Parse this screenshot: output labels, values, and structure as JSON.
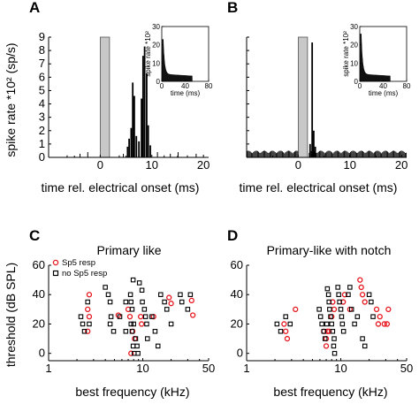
{
  "chart_data": [
    {
      "panel": "A",
      "type": "bar",
      "ylabel": "spike rate *10² (sp/s)",
      "xlabel": "time rel. electrical onset (ms)",
      "xlim": [
        -10,
        21
      ],
      "ylim": [
        0,
        9
      ],
      "yticks": [
        "0",
        "1",
        "2",
        "3",
        "4",
        "5",
        "6",
        "7",
        "8",
        "9"
      ],
      "xticks": [
        "0",
        "10",
        "20"
      ],
      "stim_window": [
        0,
        1.8
      ],
      "peaks": [
        {
          "x": 5.3,
          "y": 0.8
        },
        {
          "x": 5.6,
          "y": 1.4
        },
        {
          "x": 6.0,
          "y": 2.2
        },
        {
          "x": 6.3,
          "y": 5.6
        },
        {
          "x": 6.6,
          "y": 4.6
        },
        {
          "x": 7.0,
          "y": 1.6
        },
        {
          "x": 7.5,
          "y": 1.2
        },
        {
          "x": 8.0,
          "y": 4.4
        },
        {
          "x": 8.3,
          "y": 7.6
        },
        {
          "x": 8.6,
          "y": 8.3
        },
        {
          "x": 9.0,
          "y": 6.3
        },
        {
          "x": 9.3,
          "y": 2.4
        },
        {
          "x": 9.7,
          "y": 0.9
        }
      ],
      "inset": {
        "ylabel": "spike rate *10²",
        "xlabel": "time (ms)",
        "xlim": [
          0,
          80
        ],
        "ylim": [
          0,
          30
        ],
        "xticks": [
          "0",
          "40",
          "80"
        ],
        "yticks": [
          "0",
          "10",
          "20",
          "30"
        ],
        "onset_peak": 23,
        "sustained": 4,
        "offset_ms": 52
      }
    },
    {
      "panel": "B",
      "type": "bar",
      "xlabel": "time rel. electrical onset (ms)",
      "xlim": [
        -10,
        21
      ],
      "ylim": [
        0,
        9
      ],
      "yticks": [
        "0",
        "1",
        "2",
        "3",
        "4",
        "5",
        "6",
        "7",
        "8",
        "9"
      ],
      "xticks": [
        "0",
        "10",
        "20"
      ],
      "stim_window": [
        0,
        1.8
      ],
      "baseline": 0.4,
      "peaks": [
        {
          "x": 2.3,
          "y": 1.0
        },
        {
          "x": 2.7,
          "y": 8.6
        },
        {
          "x": 3.0,
          "y": 2.0
        },
        {
          "x": 3.3,
          "y": 0.8
        }
      ],
      "inset": {
        "ylabel": "spike rate *10²",
        "xlabel": "time (ms)",
        "xlim": [
          0,
          80
        ],
        "ylim": [
          0,
          30
        ],
        "xticks": [
          "0",
          "40",
          "80"
        ],
        "yticks": [
          "0",
          "10",
          "20",
          "30"
        ],
        "onset_peak": 26,
        "sustained": 4,
        "offset_ms": 52
      }
    },
    {
      "panel": "C",
      "type": "scatter",
      "title": "Primary like",
      "xlabel": "best frequency (kHz)",
      "ylabel": "threshold (dB SPL)",
      "xscale": "log",
      "xlim": [
        1,
        50
      ],
      "ylim": [
        -5,
        60
      ],
      "xticks": [
        "1",
        "10",
        "50"
      ],
      "yticks": [
        "0",
        "20",
        "40",
        "60"
      ],
      "legend": "top-left",
      "series": [
        {
          "name": "Sp5 resp",
          "color": "#e8171f",
          "marker": "circle",
          "points": [
            [
              2.7,
              40
            ],
            [
              2.6,
              30
            ],
            [
              2.7,
              25
            ],
            [
              2.6,
              15
            ],
            [
              5.5,
              26
            ],
            [
              7.0,
              30
            ],
            [
              7.3,
              25
            ],
            [
              7.8,
              15
            ],
            [
              8.2,
              10
            ],
            [
              7.5,
              0
            ],
            [
              9.5,
              25
            ],
            [
              9.7,
              20
            ],
            [
              13,
              25
            ],
            [
              19,
              38
            ],
            [
              20,
              34
            ],
            [
              33,
              36
            ],
            [
              34,
              26
            ]
          ]
        },
        {
          "name": "no Sp5 resp",
          "color": "#000000",
          "marker": "square",
          "points": [
            [
              2.2,
              25
            ],
            [
              2.3,
              20
            ],
            [
              2.4,
              15
            ],
            [
              2.6,
              35
            ],
            [
              2.7,
              20
            ],
            [
              4.0,
              45
            ],
            [
              4.3,
              40
            ],
            [
              4.5,
              35
            ],
            [
              4.6,
              25
            ],
            [
              4.5,
              20
            ],
            [
              4.9,
              15
            ],
            [
              5.7,
              25
            ],
            [
              6.6,
              35
            ],
            [
              6.6,
              15
            ],
            [
              7.4,
              40
            ],
            [
              7.5,
              35
            ],
            [
              7.7,
              30
            ],
            [
              7.5,
              20
            ],
            [
              7.9,
              50
            ],
            [
              8.0,
              20
            ],
            [
              7.7,
              15
            ],
            [
              8.4,
              10
            ],
            [
              7.9,
              5
            ],
            [
              8.1,
              0
            ],
            [
              8.7,
              5
            ],
            [
              8.9,
              0
            ],
            [
              9.2,
              48
            ],
            [
              9.8,
              43
            ],
            [
              9.9,
              35
            ],
            [
              10.4,
              30
            ],
            [
              10.7,
              25
            ],
            [
              11.0,
              20
            ],
            [
              11.2,
              10
            ],
            [
              12.5,
              25
            ],
            [
              13.5,
              15
            ],
            [
              14.5,
              5
            ],
            [
              15.5,
              40
            ],
            [
              17.0,
              35
            ],
            [
              18.0,
              30
            ],
            [
              20.0,
              20
            ],
            [
              25.0,
              40
            ],
            [
              26.0,
              35
            ],
            [
              30.0,
              30
            ],
            [
              32.0,
              40
            ]
          ]
        }
      ]
    },
    {
      "panel": "D",
      "type": "scatter",
      "title": "Primary-like with notch",
      "xlabel": "best frequency (kHz)",
      "xscale": "log",
      "xlim": [
        1,
        50
      ],
      "ylim": [
        -5,
        60
      ],
      "xticks": [
        "1",
        "10",
        "50"
      ],
      "yticks": [
        "0",
        "20",
        "40",
        "60"
      ],
      "series": [
        {
          "name": "Sp5 resp",
          "color": "#e8171f",
          "marker": "circle",
          "points": [
            [
              2.5,
              20
            ],
            [
              2.6,
              15
            ],
            [
              2.7,
              10
            ],
            [
              3.3,
              30
            ],
            [
              6.6,
              15
            ],
            [
              7.0,
              10
            ],
            [
              7.0,
              5
            ],
            [
              7.2,
              15
            ],
            [
              7.5,
              15
            ],
            [
              8.0,
              25
            ],
            [
              8.2,
              35
            ],
            [
              8.5,
              30
            ],
            [
              10.6,
              35
            ],
            [
              11.0,
              40
            ],
            [
              12.5,
              30
            ],
            [
              16.0,
              50
            ],
            [
              16.5,
              45
            ],
            [
              17.0,
              40
            ],
            [
              18.0,
              35
            ],
            [
              24.0,
              30
            ],
            [
              25.0,
              20
            ],
            [
              26.0,
              25
            ],
            [
              29.0,
              20
            ],
            [
              31.0,
              20
            ],
            [
              32.0,
              30
            ]
          ]
        },
        {
          "name": "no Sp5 resp",
          "color": "#000000",
          "marker": "square",
          "points": [
            [
              2.1,
              20
            ],
            [
              2.3,
              15
            ],
            [
              2.6,
              25
            ],
            [
              2.9,
              20
            ],
            [
              5.9,
              30
            ],
            [
              6.1,
              25
            ],
            [
              6.3,
              20
            ],
            [
              6.6,
              15
            ],
            [
              6.8,
              10
            ],
            [
              7.1,
              20
            ],
            [
              7.2,
              44
            ],
            [
              7.4,
              40
            ],
            [
              7.5,
              35
            ],
            [
              7.6,
              30
            ],
            [
              7.8,
              25
            ],
            [
              8.0,
              20
            ],
            [
              8.2,
              15
            ],
            [
              8.5,
              10
            ],
            [
              8.4,
              5
            ],
            [
              8.6,
              0
            ],
            [
              9.3,
              45
            ],
            [
              9.5,
              40
            ],
            [
              9.7,
              35
            ],
            [
              10.0,
              30
            ],
            [
              10.2,
              25
            ],
            [
              10.4,
              20
            ],
            [
              10.7,
              15
            ],
            [
              12.5,
              45
            ],
            [
              12.0,
              40
            ],
            [
              13.0,
              30
            ],
            [
              14.0,
              20
            ],
            [
              15.0,
              25
            ],
            [
              17.0,
              10
            ],
            [
              18.0,
              5
            ],
            [
              20.0,
              40
            ],
            [
              21.0,
              35
            ],
            [
              22.0,
              25
            ]
          ]
        }
      ]
    }
  ],
  "labels": {
    "A": "A",
    "B": "B",
    "C": "C",
    "D": "D",
    "xlabel_top": "time rel. electrical onset (ms)",
    "ylabel_top": "spike rate *10² (sp/s)",
    "xlabel_bottom": "best frequency (kHz)",
    "ylabel_bottom": "threshold (dB SPL)",
    "title_C": "Primary like",
    "title_D": "Primary-like with notch",
    "legend_sp5": "Sp5 resp",
    "legend_nosp5": "no Sp5 resp",
    "inset_ylabel": "spike rate *10²",
    "inset_xlabel": "time (ms)"
  }
}
